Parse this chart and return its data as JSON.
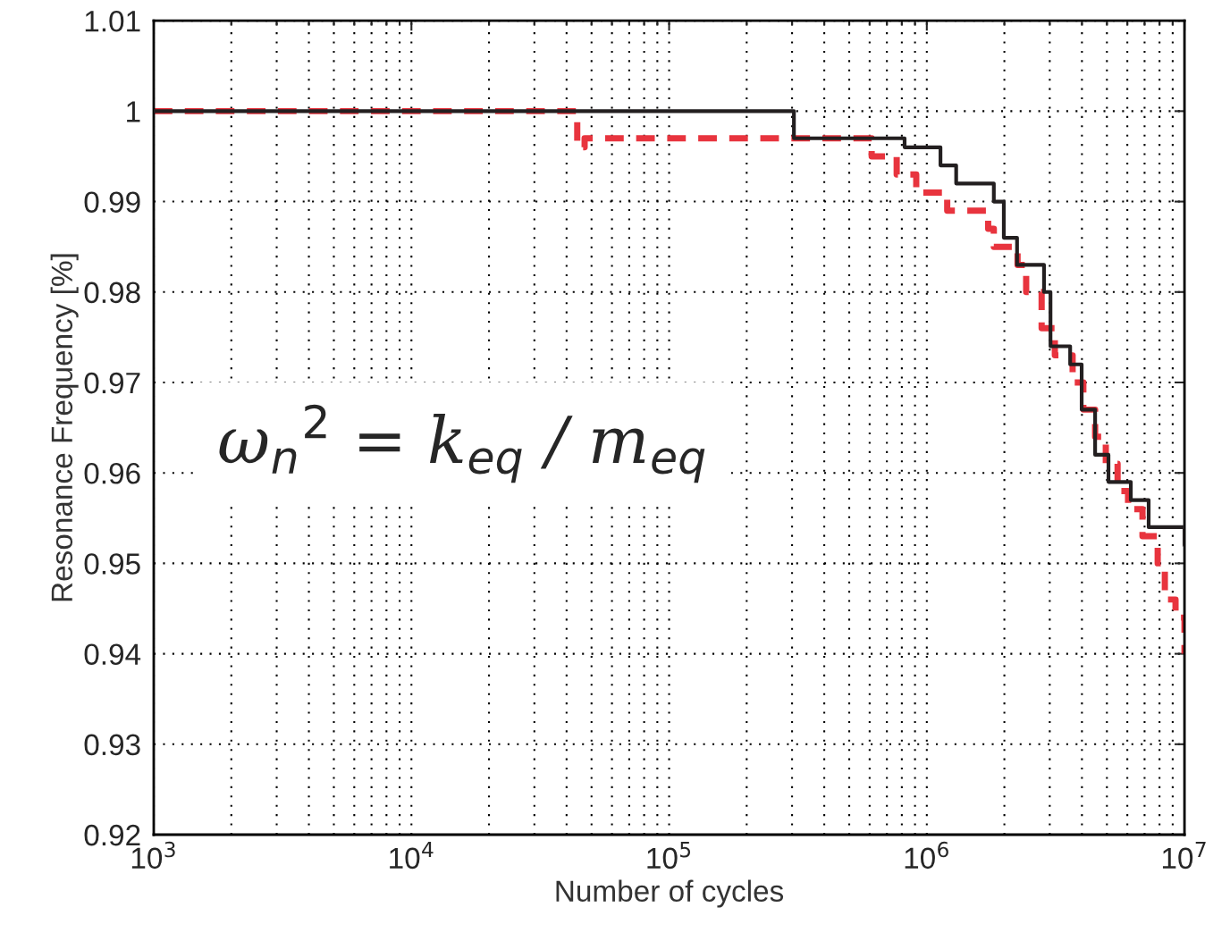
{
  "chart_data": {
    "type": "step",
    "xlabel": "Number of cycles",
    "ylabel": "Resonance Frequency [%]",
    "log": "x",
    "grid": true,
    "xlim": [
      1000,
      10000000
    ],
    "ylim": [
      0.92,
      1.01
    ],
    "xticks": [
      {
        "value": 1000,
        "label": "10$^{3}$"
      },
      {
        "value": 10000,
        "label": "10$^{4}$"
      },
      {
        "value": 100000,
        "label": "10$^{5}$"
      },
      {
        "value": 1000000,
        "label": "10$^{6}$"
      },
      {
        "value": 10000000,
        "label": "10$^{7}$"
      }
    ],
    "yticks": [
      0.92,
      0.93,
      0.94,
      0.95,
      0.96,
      0.97,
      0.98,
      0.99,
      1,
      1.01
    ],
    "annotations": [
      "ω$_{n}$$^{2}$ = k$_{eq}$ / m$_{eq}$"
    ],
    "series": [
      {
        "color": "#231f20",
        "line_style": "solid",
        "x": [
          1000,
          305000,
          820000,
          1130000,
          1300000,
          1820000,
          1990000,
          2240000,
          2850000,
          3020000,
          3600000,
          3990000,
          4500000,
          5070000,
          6190000,
          7260000,
          10000000
        ],
        "values": [
          1.0,
          0.997,
          0.996,
          0.994,
          0.992,
          0.99,
          0.986,
          0.983,
          0.98,
          0.974,
          0.972,
          0.967,
          0.962,
          0.959,
          0.957,
          0.954,
          0.952
        ]
      },
      {
        "color": "#e8343e",
        "line_style": "dashed",
        "x": [
          1000,
          44000,
          47000,
          611000,
          764000,
          910000,
          1200000,
          1730000,
          1820000,
          2250000,
          2430000,
          2790000,
          3140000,
          3680000,
          4050000,
          4500000,
          4950000,
          5500000,
          6040000,
          6870000,
          7870000,
          8390000,
          9230000,
          10000000
        ],
        "values": [
          1.0,
          0.996,
          0.997,
          0.995,
          0.993,
          0.991,
          0.989,
          0.987,
          0.985,
          0.983,
          0.98,
          0.976,
          0.973,
          0.97,
          0.967,
          0.964,
          0.961,
          0.958,
          0.956,
          0.953,
          0.95,
          0.946,
          0.944,
          0.94
        ]
      }
    ]
  }
}
